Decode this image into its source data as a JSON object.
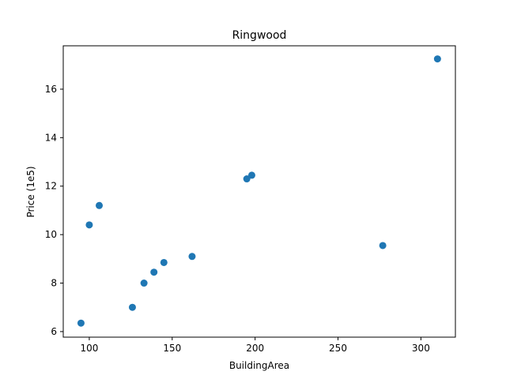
{
  "chart_data": {
    "type": "scatter",
    "title": "Ringwood",
    "xlabel": "BuildingArea",
    "ylabel": "Price (1e5)",
    "xlim": [
      84.3,
      320.8
    ],
    "ylim": [
      5.77,
      17.79
    ],
    "xticks": [
      100,
      150,
      200,
      250,
      300
    ],
    "yticks": [
      6,
      8,
      10,
      12,
      14,
      16
    ],
    "grid": false,
    "legend": false,
    "point_color": "#1f77b4",
    "points": [
      {
        "x": 95,
        "y": 6.35
      },
      {
        "x": 100,
        "y": 10.4
      },
      {
        "x": 106,
        "y": 11.2
      },
      {
        "x": 126,
        "y": 7.0
      },
      {
        "x": 133,
        "y": 8.0
      },
      {
        "x": 139,
        "y": 8.45
      },
      {
        "x": 145,
        "y": 8.85
      },
      {
        "x": 162,
        "y": 9.1
      },
      {
        "x": 195,
        "y": 12.3
      },
      {
        "x": 198,
        "y": 12.45
      },
      {
        "x": 277,
        "y": 9.55
      },
      {
        "x": 310,
        "y": 17.25
      }
    ]
  }
}
